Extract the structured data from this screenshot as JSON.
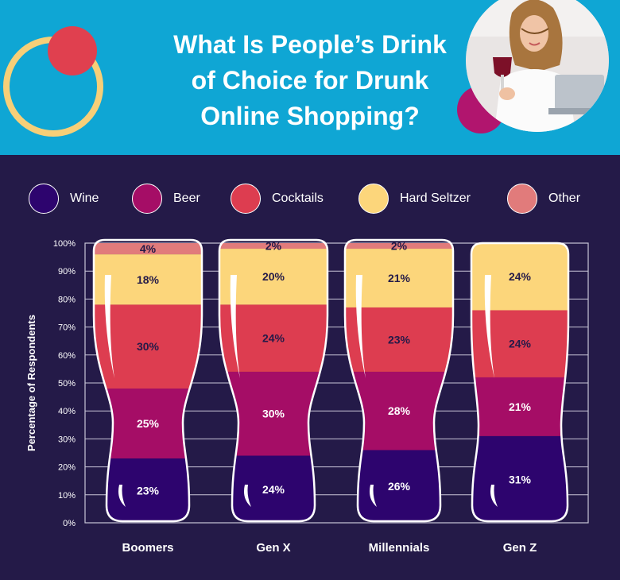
{
  "header": {
    "title_lines": [
      "What Is People’s Drink",
      "of Choice for Drunk",
      "Online Shopping?"
    ]
  },
  "colors": {
    "Wine": "#2d046e",
    "Beer": "#a50d66",
    "Cocktails": "#dd3d50",
    "Hard Seltzer": "#fcd67b",
    "Other": "#e17b7b",
    "background": "#241a48",
    "header": "#0fa6d4"
  },
  "chart_data": {
    "type": "bar",
    "stacked": true,
    "categories": [
      "Boomers",
      "Gen X",
      "Millennials",
      "Gen Z"
    ],
    "series": [
      {
        "name": "Wine",
        "values": [
          23,
          24,
          26,
          31
        ]
      },
      {
        "name": "Beer",
        "values": [
          25,
          30,
          28,
          21
        ]
      },
      {
        "name": "Cocktails",
        "values": [
          30,
          24,
          23,
          24
        ]
      },
      {
        "name": "Hard Seltzer",
        "values": [
          18,
          20,
          21,
          24
        ]
      },
      {
        "name": "Other",
        "values": [
          4,
          2,
          2,
          0
        ]
      }
    ],
    "value_labels": [
      [
        "23%",
        "25%",
        "30%",
        "18%",
        "4%"
      ],
      [
        "24%",
        "30%",
        "24%",
        "20%",
        "2%"
      ],
      [
        "26%",
        "28%",
        "23%",
        "21%",
        "2%"
      ],
      [
        "31%",
        "21%",
        "24%",
        "24%",
        ""
      ]
    ],
    "ylabel": "Percentage of Respondents",
    "ylim": [
      0,
      100
    ],
    "yticks": [
      "0%",
      "10%",
      "20%",
      "30%",
      "40%",
      "50%",
      "60%",
      "70%",
      "80%",
      "90%",
      "100%"
    ],
    "grid": true,
    "legend_position": "top"
  }
}
